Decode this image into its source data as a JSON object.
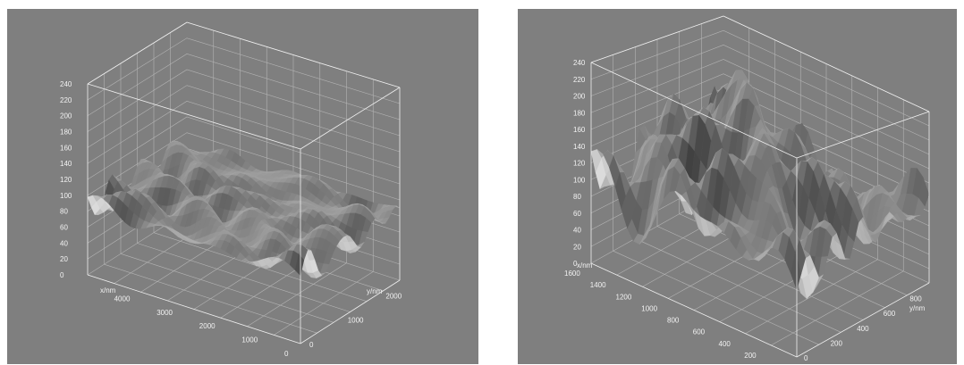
{
  "chart_data": [
    {
      "type": "surface",
      "title": "",
      "z_ticks": [
        "240",
        "220",
        "200",
        "180",
        "160",
        "140",
        "120",
        "100",
        "80",
        "60",
        "40",
        "20",
        "0"
      ],
      "x_label": "x/nm",
      "x_ticks": [
        "4000",
        "3000",
        "2000",
        "1000",
        "0"
      ],
      "y_label": "y/nm",
      "y_ticks": [
        "0",
        "1000",
        "2000"
      ],
      "zlim": [
        0,
        240
      ],
      "surface_height_range": [
        55,
        120
      ]
    },
    {
      "type": "surface",
      "title": "",
      "z_ticks": [
        "240",
        "220",
        "200",
        "180",
        "160",
        "140",
        "120",
        "100",
        "80",
        "60",
        "40",
        "20",
        "0"
      ],
      "x_label": "x/nm",
      "x_ticks": [
        "1600",
        "1400",
        "1200",
        "1000",
        "800",
        "600",
        "400",
        "200",
        "0"
      ],
      "y_label": "y/nm",
      "y_ticks": [
        "0",
        "200",
        "400",
        "600",
        "800"
      ],
      "zlim": [
        0,
        240
      ],
      "surface_height_range": [
        0,
        240
      ]
    }
  ]
}
